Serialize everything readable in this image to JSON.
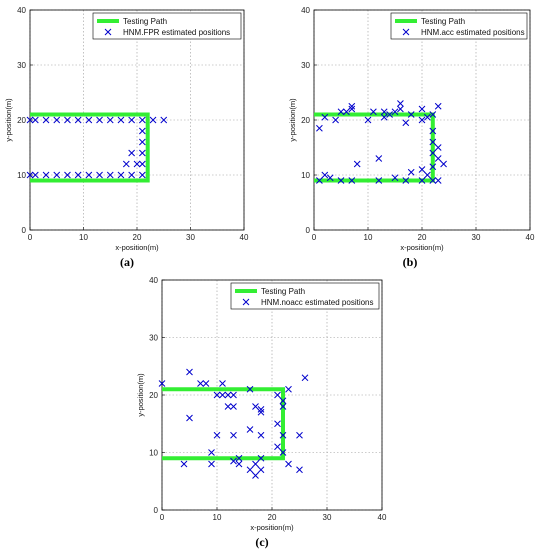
{
  "chart_data": [
    {
      "type": "scatter",
      "caption": "(a)",
      "xlabel": "x-position(m)",
      "ylabel": "y-position(m)",
      "xlim": [
        0,
        40
      ],
      "ylim": [
        0,
        40
      ],
      "xticks": [
        "0",
        "10",
        "20",
        "30",
        "40"
      ],
      "yticks": [
        "0",
        "10",
        "20",
        "30",
        "40"
      ],
      "grid": true,
      "legend_position": "top-right",
      "path": {
        "name": "Testing Path",
        "color": "#33ee33",
        "points": [
          [
            0,
            21
          ],
          [
            22,
            21
          ],
          [
            22,
            9
          ],
          [
            0,
            9
          ]
        ]
      },
      "series": [
        {
          "name": "HNM.FPR estimated positions",
          "color": "#0000cc",
          "marker": "x",
          "points": [
            [
              0,
              20
            ],
            [
              1,
              20
            ],
            [
              3,
              20
            ],
            [
              5,
              20
            ],
            [
              7,
              20
            ],
            [
              9,
              20
            ],
            [
              11,
              20
            ],
            [
              13,
              20
            ],
            [
              15,
              20
            ],
            [
              17,
              20
            ],
            [
              19,
              20
            ],
            [
              21,
              20
            ],
            [
              23,
              20
            ],
            [
              25,
              20
            ],
            [
              21,
              18
            ],
            [
              21,
              16
            ],
            [
              21,
              14
            ],
            [
              20,
              12
            ],
            [
              21,
              12
            ],
            [
              19,
              14
            ],
            [
              18,
              12
            ],
            [
              0,
              10
            ],
            [
              1,
              10
            ],
            [
              3,
              10
            ],
            [
              5,
              10
            ],
            [
              7,
              10
            ],
            [
              9,
              10
            ],
            [
              11,
              10
            ],
            [
              13,
              10
            ],
            [
              15,
              10
            ],
            [
              17,
              10
            ],
            [
              19,
              10
            ],
            [
              21,
              10
            ]
          ]
        }
      ]
    },
    {
      "type": "scatter",
      "caption": "(b)",
      "xlabel": "x-position(m)",
      "ylabel": "y-position(m)",
      "xlim": [
        0,
        40
      ],
      "ylim": [
        0,
        40
      ],
      "xticks": [
        "0",
        "10",
        "20",
        "30",
        "40"
      ],
      "yticks": [
        "0",
        "10",
        "20",
        "30",
        "40"
      ],
      "grid": true,
      "legend_position": "top-right",
      "path": {
        "name": "Testing Path",
        "color": "#33ee33",
        "points": [
          [
            0,
            21
          ],
          [
            22,
            21
          ],
          [
            22,
            9
          ],
          [
            0,
            9
          ]
        ]
      },
      "series": [
        {
          "name": "HNM.acc estimated positions",
          "color": "#0000cc",
          "marker": "x",
          "points": [
            [
              1,
              18.5
            ],
            [
              2,
              20.5
            ],
            [
              4,
              20
            ],
            [
              5,
              21.5
            ],
            [
              6,
              21.5
            ],
            [
              7,
              22
            ],
            [
              7,
              22.5
            ],
            [
              10,
              20
            ],
            [
              11,
              21.5
            ],
            [
              13,
              21.5
            ],
            [
              13,
              20.5
            ],
            [
              14,
              21
            ],
            [
              15,
              21.5
            ],
            [
              16,
              23
            ],
            [
              16,
              22
            ],
            [
              17,
              19.5
            ],
            [
              18,
              21
            ],
            [
              20,
              22
            ],
            [
              20,
              20
            ],
            [
              21,
              20.5
            ],
            [
              22,
              21
            ],
            [
              23,
              22.5
            ],
            [
              22,
              18
            ],
            [
              22,
              16
            ],
            [
              23,
              15
            ],
            [
              22,
              14
            ],
            [
              23,
              13
            ],
            [
              24,
              12
            ],
            [
              22,
              11.5
            ],
            [
              21,
              10
            ],
            [
              20,
              11
            ],
            [
              18,
              10.5
            ],
            [
              17,
              9
            ],
            [
              15,
              9.5
            ],
            [
              12,
              13
            ],
            [
              12,
              9
            ],
            [
              8,
              12
            ],
            [
              7,
              9
            ],
            [
              5,
              9
            ],
            [
              3,
              9.5
            ],
            [
              2,
              10
            ],
            [
              1,
              9
            ],
            [
              22,
              9
            ],
            [
              23,
              9
            ],
            [
              20,
              9
            ]
          ]
        }
      ]
    },
    {
      "type": "scatter",
      "caption": "(c)",
      "xlabel": "x-position(m)",
      "ylabel": "y-position(m)",
      "xlim": [
        0,
        40
      ],
      "ylim": [
        0,
        40
      ],
      "xticks": [
        "0",
        "10",
        "20",
        "30",
        "40"
      ],
      "yticks": [
        "0",
        "10",
        "20",
        "30",
        "40"
      ],
      "grid": true,
      "legend_position": "top-right",
      "path": {
        "name": "Testing Path",
        "color": "#33ee33",
        "points": [
          [
            0,
            21
          ],
          [
            22,
            21
          ],
          [
            22,
            9
          ],
          [
            0,
            9
          ]
        ]
      },
      "series": [
        {
          "name": "HNM.noacc estimated positions",
          "color": "#0000cc",
          "marker": "x",
          "points": [
            [
              0,
              22
            ],
            [
              5,
              24
            ],
            [
              7,
              22
            ],
            [
              8,
              22
            ],
            [
              10,
              20
            ],
            [
              11,
              20
            ],
            [
              11,
              22
            ],
            [
              12,
              20
            ],
            [
              13,
              20
            ],
            [
              13,
              18
            ],
            [
              16,
              21
            ],
            [
              17,
              18
            ],
            [
              18,
              17
            ],
            [
              18,
              17.5
            ],
            [
              21,
              20
            ],
            [
              22,
              19
            ],
            [
              22,
              18
            ],
            [
              23,
              21
            ],
            [
              26,
              23
            ],
            [
              5,
              16
            ],
            [
              10,
              13
            ],
            [
              12,
              18
            ],
            [
              13,
              13
            ],
            [
              16,
              14
            ],
            [
              18,
              13
            ],
            [
              21,
              15
            ],
            [
              22,
              13
            ],
            [
              25,
              13
            ],
            [
              21,
              11
            ],
            [
              22,
              10
            ],
            [
              9,
              10
            ],
            [
              13,
              8.5
            ],
            [
              14,
              9
            ],
            [
              14,
              8
            ],
            [
              16,
              7
            ],
            [
              17,
              6
            ],
            [
              18,
              9
            ],
            [
              18,
              7
            ],
            [
              17,
              8
            ],
            [
              9,
              8
            ],
            [
              4,
              8
            ],
            [
              23,
              8
            ],
            [
              25,
              7
            ]
          ]
        }
      ]
    }
  ]
}
